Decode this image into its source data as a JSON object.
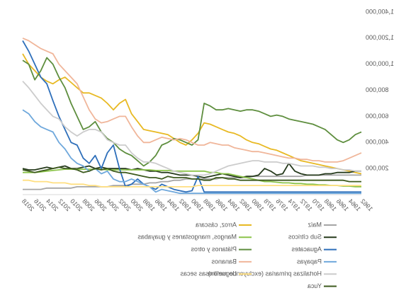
{
  "chart_data": {
    "type": "line",
    "mirrored": true,
    "x": [
      1962,
      1963,
      1964,
      1965,
      1966,
      1967,
      1968,
      1969,
      1970,
      1971,
      1972,
      1973,
      1974,
      1975,
      1976,
      1977,
      1978,
      1979,
      1980,
      1981,
      1982,
      1983,
      1984,
      1985,
      1986,
      1987,
      1988,
      1989,
      1990,
      1991,
      1992,
      1993,
      1994,
      1995,
      1996,
      1997,
      1998,
      1999,
      2000,
      2001,
      2002,
      2003,
      2004,
      2005,
      2006,
      2007,
      2008,
      2009,
      2010,
      2011,
      2012,
      2013,
      2014,
      2015,
      2016,
      2017,
      2018
    ],
    "xlim": [
      1962,
      2018
    ],
    "xticks": [
      1962,
      1964,
      1966,
      1968,
      1970,
      1972,
      1974,
      1976,
      1978,
      1980,
      1982,
      1984,
      1986,
      1988,
      1990,
      1992,
      1994,
      1996,
      1998,
      2000,
      2002,
      2004,
      2006,
      2008,
      2010,
      2012,
      2014,
      2016,
      2018
    ],
    "ylim": [
      0,
      1400000
    ],
    "yticks": [
      {
        "value": 200000,
        "label": "200,000"
      },
      {
        "value": 400000,
        "label": "400,000"
      },
      {
        "value": 600000,
        "label": "600,000"
      },
      {
        "value": 800000,
        "label": "800,000"
      },
      {
        "value": 1000000,
        "label": "1,000,000"
      },
      {
        "value": 1200000,
        "label": "1,200,000"
      },
      {
        "value": 1400000,
        "label": "1,400,000"
      }
    ],
    "series": [
      {
        "name": "Maíz",
        "color": "#a5a5a5",
        "values": [
          150000,
          150000,
          150000,
          150000,
          150000,
          150000,
          150000,
          150000,
          150000,
          150000,
          140000,
          140000,
          140000,
          140000,
          140000,
          140000,
          140000,
          140000,
          140000,
          130000,
          130000,
          130000,
          130000,
          130000,
          120000,
          120000,
          120000,
          120000,
          120000,
          120000,
          110000,
          110000,
          100000,
          100000,
          90000,
          90000,
          80000,
          80000,
          80000,
          70000,
          70000,
          70000,
          60000,
          60000,
          60000,
          60000,
          60000,
          60000,
          50000,
          50000,
          50000,
          50000,
          50000,
          40000,
          40000,
          40000,
          40000
        ]
      },
      {
        "name": "Arroz, cáscara",
        "color": "#e8b923",
        "values": [
          160000,
          170000,
          180000,
          190000,
          200000,
          210000,
          220000,
          230000,
          240000,
          250000,
          260000,
          280000,
          300000,
          320000,
          340000,
          350000,
          370000,
          390000,
          400000,
          420000,
          450000,
          470000,
          480000,
          500000,
          520000,
          540000,
          550000,
          470000,
          420000,
          380000,
          400000,
          430000,
          460000,
          470000,
          480000,
          490000,
          500000,
          560000,
          620000,
          730000,
          700000,
          650000,
          700000,
          740000,
          760000,
          780000,
          780000,
          820000,
          860000,
          900000,
          880000,
          850000,
          870000,
          900000,
          950000,
          1000000,
          1080000
        ]
      },
      {
        "name": "Sub cítricos",
        "color": "#263a1c",
        "values": [
          180000,
          180000,
          170000,
          170000,
          170000,
          160000,
          160000,
          150000,
          150000,
          150000,
          160000,
          180000,
          240000,
          160000,
          150000,
          180000,
          200000,
          150000,
          140000,
          140000,
          130000,
          140000,
          150000,
          160000,
          150000,
          140000,
          130000,
          140000,
          150000,
          150000,
          150000,
          160000,
          170000,
          170000,
          180000,
          180000,
          190000,
          200000,
          190000,
          200000,
          200000,
          200000,
          200000,
          210000,
          200000,
          220000,
          210000,
          200000,
          200000,
          220000,
          210000,
          200000,
          210000,
          200000,
          190000,
          190000,
          200000
        ]
      },
      {
        "name": "Mangos, mangostanes y guayabas",
        "color": "#8bc34a",
        "values": [
          60000,
          60000,
          65000,
          65000,
          70000,
          70000,
          75000,
          75000,
          80000,
          80000,
          85000,
          85000,
          90000,
          90000,
          95000,
          100000,
          100000,
          110000,
          120000,
          130000,
          140000,
          150000,
          160000,
          160000,
          170000,
          170000,
          180000,
          180000,
          180000,
          180000,
          180000,
          180000,
          185000,
          185000,
          185000,
          190000,
          190000,
          190000,
          190000,
          190000,
          190000,
          190000,
          190000,
          195000,
          195000,
          195000,
          195000,
          195000,
          195000,
          195000,
          190000,
          185000,
          180000,
          175000,
          170000,
          170000,
          170000
        ]
      },
      {
        "name": "Aguacates",
        "color": "#2e6fba",
        "values": [
          20000,
          20000,
          20000,
          20000,
          20000,
          20000,
          20000,
          20000,
          20000,
          20000,
          20000,
          20000,
          20000,
          20000,
          20000,
          20000,
          20000,
          20000,
          20000,
          20000,
          20000,
          20000,
          20000,
          20000,
          20000,
          20000,
          20000,
          140000,
          30000,
          20000,
          30000,
          40000,
          60000,
          80000,
          40000,
          60000,
          80000,
          120000,
          80000,
          60000,
          200000,
          380000,
          320000,
          200000,
          300000,
          240000,
          280000,
          380000,
          400000,
          500000,
          600000,
          720000,
          850000,
          900000,
          1000000,
          1100000,
          1180000
        ]
      },
      {
        "name": "Plátanos y otros",
        "color": "#5e8e3e",
        "values": [
          480000,
          460000,
          420000,
          400000,
          420000,
          460000,
          500000,
          520000,
          540000,
          550000,
          560000,
          570000,
          580000,
          600000,
          610000,
          600000,
          620000,
          640000,
          650000,
          650000,
          640000,
          650000,
          660000,
          650000,
          650000,
          680000,
          700000,
          420000,
          380000,
          400000,
          420000,
          430000,
          400000,
          380000,
          300000,
          250000,
          220000,
          260000,
          300000,
          320000,
          350000,
          400000,
          430000,
          480000,
          560000,
          520000,
          500000,
          600000,
          700000,
          820000,
          900000,
          1000000,
          1050000,
          950000,
          880000,
          1000000,
          1030000
        ]
      },
      {
        "name": "Papayas",
        "color": "#6fa8dc",
        "values": [
          10000,
          10000,
          10000,
          10000,
          10000,
          10000,
          10000,
          10000,
          10000,
          10000,
          10000,
          10000,
          10000,
          10000,
          10000,
          10000,
          10000,
          10000,
          10000,
          10000,
          10000,
          10000,
          10000,
          10000,
          10000,
          10000,
          10000,
          10000,
          10000,
          10000,
          10000,
          20000,
          30000,
          40000,
          20000,
          60000,
          80000,
          100000,
          120000,
          100000,
          100000,
          120000,
          180000,
          160000,
          200000,
          180000,
          220000,
          240000,
          280000,
          350000,
          400000,
          480000,
          500000,
          520000,
          560000,
          620000,
          650000
        ]
      },
      {
        "name": "Bananos",
        "color": "#f0b69a",
        "values": [
          320000,
          300000,
          280000,
          260000,
          250000,
          250000,
          250000,
          260000,
          260000,
          270000,
          270000,
          280000,
          280000,
          290000,
          300000,
          310000,
          320000,
          330000,
          330000,
          340000,
          350000,
          360000,
          380000,
          380000,
          390000,
          400000,
          380000,
          380000,
          400000,
          420000,
          430000,
          420000,
          430000,
          440000,
          420000,
          400000,
          400000,
          450000,
          520000,
          600000,
          600000,
          580000,
          560000,
          550000,
          580000,
          650000,
          750000,
          850000,
          900000,
          950000,
          1000000,
          1080000,
          1100000,
          1120000,
          1150000,
          1180000,
          1200000
        ]
      },
      {
        "name": "Hortalizas primarias (excluyendo melón)",
        "color": "#cccccc",
        "values": [
          180000,
          180000,
          190000,
          190000,
          200000,
          200000,
          210000,
          210000,
          220000,
          220000,
          220000,
          230000,
          240000,
          240000,
          250000,
          250000,
          250000,
          260000,
          260000,
          250000,
          240000,
          230000,
          220000,
          200000,
          180000,
          160000,
          150000,
          150000,
          150000,
          160000,
          170000,
          180000,
          200000,
          220000,
          240000,
          250000,
          250000,
          280000,
          320000,
          380000,
          380000,
          400000,
          420000,
          480000,
          500000,
          500000,
          480000,
          450000,
          480000,
          520000,
          580000,
          600000,
          650000,
          700000,
          760000,
          820000,
          870000
        ]
      },
      {
        "name": "Leguminosas secas",
        "color": "#ffdf80",
        "values": [
          70000,
          70000,
          70000,
          70000,
          70000,
          70000,
          70000,
          70000,
          70000,
          70000,
          70000,
          70000,
          70000,
          70000,
          70000,
          70000,
          70000,
          70000,
          70000,
          70000,
          70000,
          70000,
          70000,
          70000,
          70000,
          70000,
          70000,
          70000,
          60000,
          60000,
          60000,
          60000,
          60000,
          60000,
          60000,
          60000,
          60000,
          60000,
          60000,
          60000,
          60000,
          60000,
          60000,
          60000,
          70000,
          70000,
          80000,
          80000,
          80000,
          90000,
          90000,
          90000,
          100000,
          100000,
          100000,
          110000,
          110000
        ]
      },
      {
        "name": "Yuca",
        "color": "#3d5a1e",
        "values": [
          100000,
          100000,
          100000,
          110000,
          110000,
          110000,
          110000,
          110000,
          110000,
          110000,
          110000,
          110000,
          110000,
          110000,
          110000,
          110000,
          110000,
          110000,
          110000,
          110000,
          110000,
          120000,
          120000,
          130000,
          130000,
          110000,
          110000,
          120000,
          120000,
          130000,
          130000,
          130000,
          140000,
          120000,
          130000,
          130000,
          140000,
          150000,
          160000,
          170000,
          170000,
          180000,
          200000,
          190000,
          200000,
          180000,
          170000,
          190000,
          200000,
          200000,
          210000,
          200000,
          190000,
          180000,
          170000,
          180000,
          190000
        ]
      }
    ]
  }
}
